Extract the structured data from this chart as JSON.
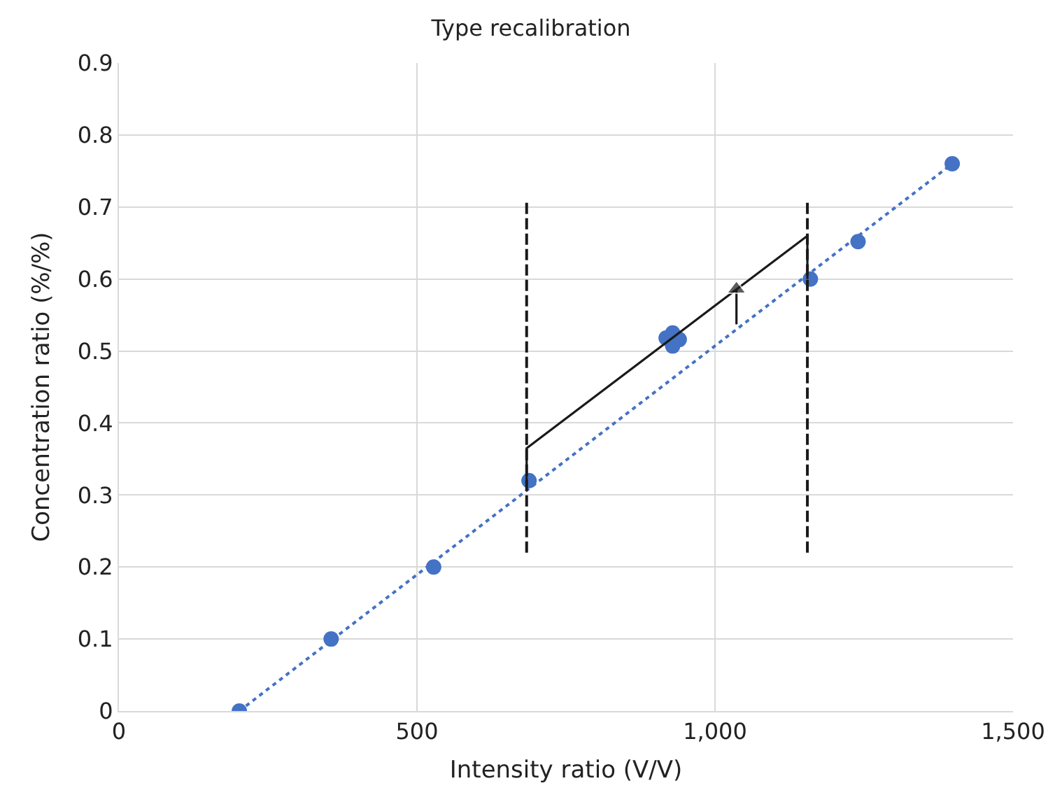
{
  "chart_data": {
    "type": "scatter",
    "title": "Type recalibration",
    "xlabel": "Intensity ratio (V/V)",
    "ylabel": "Concentration ratio (%/%)",
    "xlim": [
      0,
      1500
    ],
    "xticks": [
      0,
      500,
      {
        "value": 1000,
        "label": "1,000"
      },
      {
        "value": 1500,
        "label": "1,500"
      }
    ],
    "ylim": [
      0,
      0.9
    ],
    "yticks": [
      0,
      0.1,
      0.2,
      0.3,
      0.4,
      0.5,
      0.6,
      0.7,
      0.8,
      0.9
    ],
    "grid": true,
    "series": [
      {
        "color": "#4472c4",
        "marker": "circle",
        "x": [
          202,
          356,
          528,
          688,
          918,
          929,
          940,
          929,
          1160,
          1240,
          1398
        ],
        "values": [
          0,
          0.1,
          0.2,
          0.32,
          0.518,
          0.525,
          0.516,
          0.507,
          0.6,
          0.652,
          0.76
        ]
      },
      {
        "type": "line",
        "color": "#4472c4",
        "line_style": "dotted",
        "marker": "none",
        "x": [
          202,
          1398
        ],
        "values": [
          0,
          0.76
        ]
      },
      {
        "type": "line",
        "color": "#1a1a1a",
        "line_style": "solid",
        "marker": "none",
        "x": [
          684,
          684,
          1155,
          1155
        ],
        "values": [
          0.32,
          0.365,
          0.66,
          0.6
        ]
      },
      {
        "type": "line",
        "color": "#1a1a1a",
        "line_style": "dashed",
        "marker": "none",
        "x": [
          684,
          684
        ],
        "values": [
          0.22,
          0.71
        ]
      },
      {
        "type": "line",
        "color": "#1a1a1a",
        "line_style": "dashed",
        "marker": "none",
        "x": [
          1155,
          1155
        ],
        "values": [
          0.22,
          0.71
        ]
      },
      {
        "type": "line",
        "color": "#1a1a1a",
        "line_style": "solid",
        "marker": "triangle",
        "x": [
          1036,
          1036
        ],
        "values": [
          0.537,
          0.586
        ]
      }
    ]
  }
}
